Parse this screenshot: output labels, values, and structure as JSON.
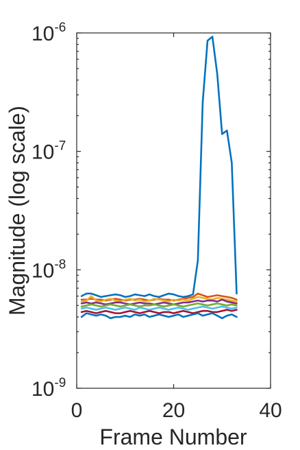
{
  "chart_data": {
    "type": "line",
    "xlabel": "Frame Number",
    "ylabel": "Magnitude (log scale)",
    "xlim": [
      0,
      40
    ],
    "ylim": [
      1e-09,
      1e-06
    ],
    "yscale": "log",
    "grid": false,
    "xticks": [
      {
        "value": 0,
        "label": "0"
      },
      {
        "value": 20,
        "label": "20"
      },
      {
        "value": 40,
        "label": "40"
      }
    ],
    "yticks": [
      {
        "value": 1e-09,
        "base": "10",
        "exp": "-9"
      },
      {
        "value": 1e-08,
        "base": "10",
        "exp": "-8"
      },
      {
        "value": 1e-07,
        "base": "10",
        "exp": "-7"
      },
      {
        "value": 1e-06,
        "base": "10",
        "exp": "-6"
      }
    ],
    "x": [
      1,
      2,
      3,
      4,
      5,
      6,
      7,
      8,
      9,
      10,
      11,
      12,
      13,
      14,
      15,
      16,
      17,
      18,
      19,
      20,
      21,
      22,
      23,
      24,
      25,
      26,
      27,
      28,
      29,
      30,
      31,
      32,
      33
    ],
    "series": [
      {
        "color": "#0072BD",
        "values": [
          6e-09,
          6.3e-09,
          6.3e-09,
          6.1e-09,
          5.9e-09,
          6e-09,
          6.1e-09,
          6.2e-09,
          6.1e-09,
          5.9e-09,
          6e-09,
          6.2e-09,
          6.1e-09,
          6e-09,
          6.2e-09,
          6e-09,
          5.9e-09,
          6.1e-09,
          6.3e-09,
          6.2e-09,
          6e-09,
          5.9e-09,
          6e-09,
          6.2e-09,
          1.2e-08,
          2.6e-07,
          8.6e-07,
          9.3e-07,
          4.5e-07,
          1.4e-07,
          1.5e-07,
          8e-08,
          6.3e-09
        ]
      },
      {
        "color": "#D95319",
        "values": [
          5.6e-09,
          5.6e-09,
          5.7e-09,
          5.6e-09,
          5.6e-09,
          5.5e-09,
          5.6e-09,
          5.7e-09,
          5.6e-09,
          5.5e-09,
          5.6e-09,
          5.6e-09,
          5.7e-09,
          5.6e-09,
          5.5e-09,
          5.6e-09,
          5.7e-09,
          5.6e-09,
          5.6e-09,
          5.5e-09,
          5.6e-09,
          5.7e-09,
          5.8e-09,
          5.9e-09,
          6.3e-09,
          6.1e-09,
          5.9e-09,
          6e-09,
          6.1e-09,
          6e-09,
          5.9e-09,
          5.8e-09,
          5.6e-09
        ]
      },
      {
        "color": "#EDB120",
        "values": [
          5.4e-09,
          5.5e-09,
          6e-09,
          5.5e-09,
          5.4e-09,
          5.6e-09,
          5.7e-09,
          5.5e-09,
          5.4e-09,
          5.6e-09,
          5.7e-09,
          5.5e-09,
          5.6e-09,
          5.4e-09,
          5.5e-09,
          5.7e-09,
          5.6e-09,
          5.5e-09,
          5.4e-09,
          5.6e-09,
          5.5e-09,
          5.6e-09,
          5.5e-09,
          5.7e-09,
          5.9e-09,
          5.8e-09,
          5.7e-09,
          5.6e-09,
          5.8e-09,
          5.7e-09,
          5.6e-09,
          5.5e-09,
          5.4e-09
        ]
      },
      {
        "color": "#7E2F8E",
        "values": [
          5.2e-09,
          5.3e-09,
          5.2e-09,
          5.3e-09,
          5.2e-09,
          5.1e-09,
          5.2e-09,
          5.3e-09,
          5.3e-09,
          5.2e-09,
          5.1e-09,
          5.2e-09,
          5.3e-09,
          5.2e-09,
          5.2e-09,
          5.1e-09,
          5.2e-09,
          5.3e-09,
          5.2e-09,
          5.1e-09,
          5.2e-09,
          5.3e-09,
          5.3e-09,
          5.4e-09,
          5.5e-09,
          5.4e-09,
          5.5e-09,
          5.5e-09,
          5.4e-09,
          5.6e-09,
          5.4e-09,
          5.3e-09,
          5.2e-09
        ]
      },
      {
        "color": "#77AC30",
        "values": [
          4.9e-09,
          5e-09,
          5.1e-09,
          5e-09,
          4.9e-09,
          5e-09,
          5.1e-09,
          5e-09,
          4.9e-09,
          5e-09,
          5.1e-09,
          5e-09,
          4.9e-09,
          5e-09,
          5e-09,
          5.1e-09,
          5e-09,
          4.9e-09,
          5e-09,
          5.1e-09,
          5e-09,
          4.9e-09,
          5e-09,
          5.1e-09,
          5.2e-09,
          5.1e-09,
          5e-09,
          5.1e-09,
          5.2e-09,
          5.1e-09,
          5e-09,
          5.1e-09,
          5e-09
        ]
      },
      {
        "color": "#4DBEEE",
        "values": [
          4.7e-09,
          4.8e-09,
          4.7e-09,
          4.6e-09,
          4.7e-09,
          4.8e-09,
          4.7e-09,
          4.6e-09,
          4.7e-09,
          4.8e-09,
          4.7e-09,
          4.6e-09,
          4.8e-09,
          4.7e-09,
          4.6e-09,
          4.7e-09,
          4.8e-09,
          4.7e-09,
          4.6e-09,
          4.7e-09,
          4.8e-09,
          4.7e-09,
          4.6e-09,
          4.7e-09,
          4.8e-09,
          4.9e-09,
          4.8e-09,
          4.7e-09,
          4.8e-09,
          4.9e-09,
          4.8e-09,
          4.7e-09,
          4.8e-09
        ]
      },
      {
        "color": "#A2142F",
        "values": [
          4.4e-09,
          4.5e-09,
          4.4e-09,
          4.3e-09,
          4.4e-09,
          4.5e-09,
          4.4e-09,
          4.3e-09,
          4.3e-09,
          4.4e-09,
          4.5e-09,
          4.4e-09,
          4.3e-09,
          4.4e-09,
          4.5e-09,
          4.4e-09,
          4.3e-09,
          4.4e-09,
          4.4e-09,
          4.3e-09,
          4.4e-09,
          4.5e-09,
          4.4e-09,
          4.3e-09,
          4.4e-09,
          4.5e-09,
          4.5e-09,
          4.4e-09,
          4.4e-09,
          4.5e-09,
          4.6e-09,
          4.5e-09,
          4.6e-09
        ]
      },
      {
        "color": "#0072BD",
        "values": [
          4e-09,
          4.3e-09,
          4.2e-09,
          4.1e-09,
          4.2e-09,
          4.1e-09,
          3.9e-09,
          4e-09,
          4e-09,
          4.1e-09,
          4e-09,
          4.2e-09,
          4.1e-09,
          4.2e-09,
          4e-09,
          4.1e-09,
          4.2e-09,
          4.1e-09,
          4e-09,
          4.1e-09,
          4.2e-09,
          4e-09,
          4.1e-09,
          4.2e-09,
          4.3e-09,
          4.1e-09,
          4.2e-09,
          4.3e-09,
          4.1e-09,
          3.9e-09,
          4.1e-09,
          4.2e-09,
          4e-09
        ]
      }
    ]
  }
}
